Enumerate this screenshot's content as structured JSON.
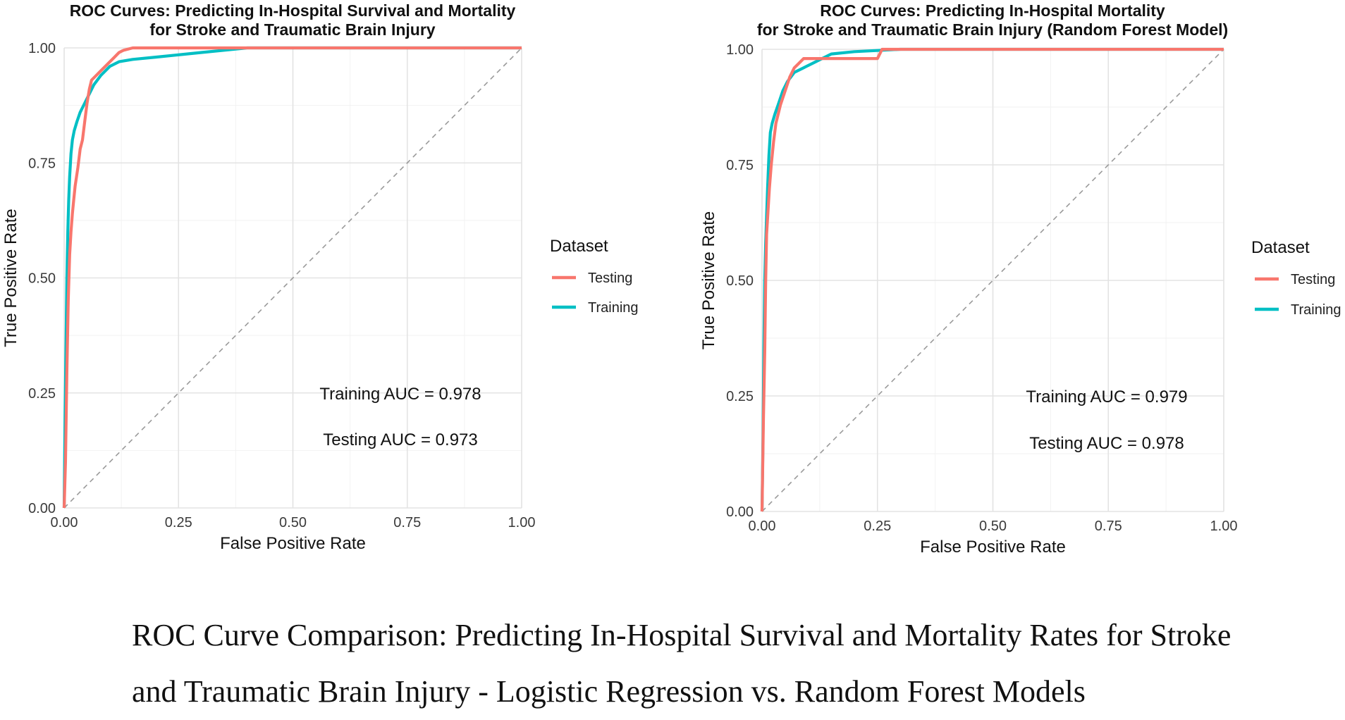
{
  "chart_data": [
    {
      "type": "line",
      "title_lines": [
        "ROC Curves: Predicting In-Hospital Survival and Mortality",
        "for Stroke and Traumatic Brain Injury"
      ],
      "xlabel": "False Positive Rate",
      "ylabel": "True Positive Rate",
      "xlim": [
        0,
        1
      ],
      "ylim": [
        0,
        1
      ],
      "ticks": [
        0,
        0.25,
        0.5,
        0.75,
        1
      ],
      "tick_labels": [
        "0.00",
        "0.25",
        "0.50",
        "0.75",
        "1.00"
      ],
      "grid": true,
      "legend": {
        "title": "Dataset",
        "position": "right",
        "entries": [
          "Testing",
          "Training"
        ]
      },
      "series": [
        {
          "name": "Testing",
          "color": "#F8766D",
          "x": [
            0,
            0.003,
            0.006,
            0.009,
            0.012,
            0.015,
            0.018,
            0.021,
            0.024,
            0.03,
            0.035,
            0.04,
            0.045,
            0.05,
            0.055,
            0.06,
            0.07,
            0.08,
            0.09,
            0.1,
            0.11,
            0.12,
            0.13,
            0.15,
            0.2,
            0.3,
            0.5,
            0.75,
            1
          ],
          "y": [
            0,
            0.1,
            0.3,
            0.45,
            0.55,
            0.6,
            0.64,
            0.67,
            0.7,
            0.74,
            0.78,
            0.8,
            0.84,
            0.88,
            0.91,
            0.93,
            0.94,
            0.95,
            0.96,
            0.97,
            0.98,
            0.99,
            0.995,
            1,
            1,
            1,
            1,
            1,
            1
          ]
        },
        {
          "name": "Training",
          "color": "#00BFC4",
          "x": [
            0,
            0.002,
            0.004,
            0.006,
            0.008,
            0.01,
            0.012,
            0.015,
            0.018,
            0.022,
            0.028,
            0.035,
            0.045,
            0.055,
            0.065,
            0.08,
            0.1,
            0.12,
            0.15,
            0.2,
            0.25,
            0.3,
            0.35,
            0.4,
            0.5,
            0.75,
            1
          ],
          "y": [
            0,
            0.2,
            0.35,
            0.5,
            0.6,
            0.67,
            0.72,
            0.77,
            0.8,
            0.82,
            0.84,
            0.86,
            0.88,
            0.9,
            0.92,
            0.94,
            0.96,
            0.97,
            0.975,
            0.98,
            0.985,
            0.99,
            0.995,
            1,
            1,
            1,
            1
          ]
        }
      ],
      "annotations": [
        "Training AUC = 0.978",
        "Testing AUC = 0.973"
      ]
    },
    {
      "type": "line",
      "title_lines": [
        "ROC Curves: Predicting In-Hospital Mortality",
        "for Stroke and Traumatic Brain Injury (Random Forest Model)"
      ],
      "xlabel": "False Positive Rate",
      "ylabel": "True Positive Rate",
      "xlim": [
        0,
        1
      ],
      "ylim": [
        0,
        1
      ],
      "ticks": [
        0,
        0.25,
        0.5,
        0.75,
        1
      ],
      "tick_labels": [
        "0.00",
        "0.25",
        "0.50",
        "0.75",
        "1.00"
      ],
      "grid": true,
      "legend": {
        "title": "Dataset",
        "position": "right",
        "entries": [
          "Testing",
          "Training"
        ]
      },
      "series": [
        {
          "name": "Testing",
          "color": "#F8766D",
          "x": [
            0,
            0.003,
            0.006,
            0.008,
            0.01,
            0.013,
            0.016,
            0.02,
            0.025,
            0.03,
            0.04,
            0.05,
            0.06,
            0.07,
            0.08,
            0.09,
            0.1,
            0.15,
            0.2,
            0.25,
            0.26,
            0.3,
            0.5,
            0.75,
            1
          ],
          "y": [
            0,
            0.2,
            0.35,
            0.5,
            0.6,
            0.65,
            0.7,
            0.75,
            0.8,
            0.84,
            0.88,
            0.91,
            0.94,
            0.96,
            0.97,
            0.98,
            0.98,
            0.98,
            0.98,
            0.98,
            1,
            1,
            1,
            1,
            1
          ]
        },
        {
          "name": "Training",
          "color": "#00BFC4",
          "x": [
            0,
            0.002,
            0.004,
            0.006,
            0.008,
            0.01,
            0.012,
            0.015,
            0.018,
            0.022,
            0.028,
            0.035,
            0.045,
            0.055,
            0.07,
            0.09,
            0.11,
            0.13,
            0.15,
            0.2,
            0.3,
            0.5,
            0.75,
            1
          ],
          "y": [
            0,
            0.15,
            0.35,
            0.5,
            0.58,
            0.64,
            0.7,
            0.77,
            0.82,
            0.84,
            0.86,
            0.88,
            0.91,
            0.93,
            0.95,
            0.96,
            0.97,
            0.98,
            0.99,
            0.995,
            1,
            1,
            1,
            1
          ]
        }
      ],
      "annotations": [
        "Training AUC  = 0.979",
        "Testing AUC = 0.978"
      ]
    }
  ],
  "caption": {
    "line1": "ROC Curve Comparison: Predicting In-Hospital Survival and Mortality Rates for Stroke",
    "line2": "and Traumatic Brain Injury - Logistic Regression vs. Random Forest Models"
  }
}
